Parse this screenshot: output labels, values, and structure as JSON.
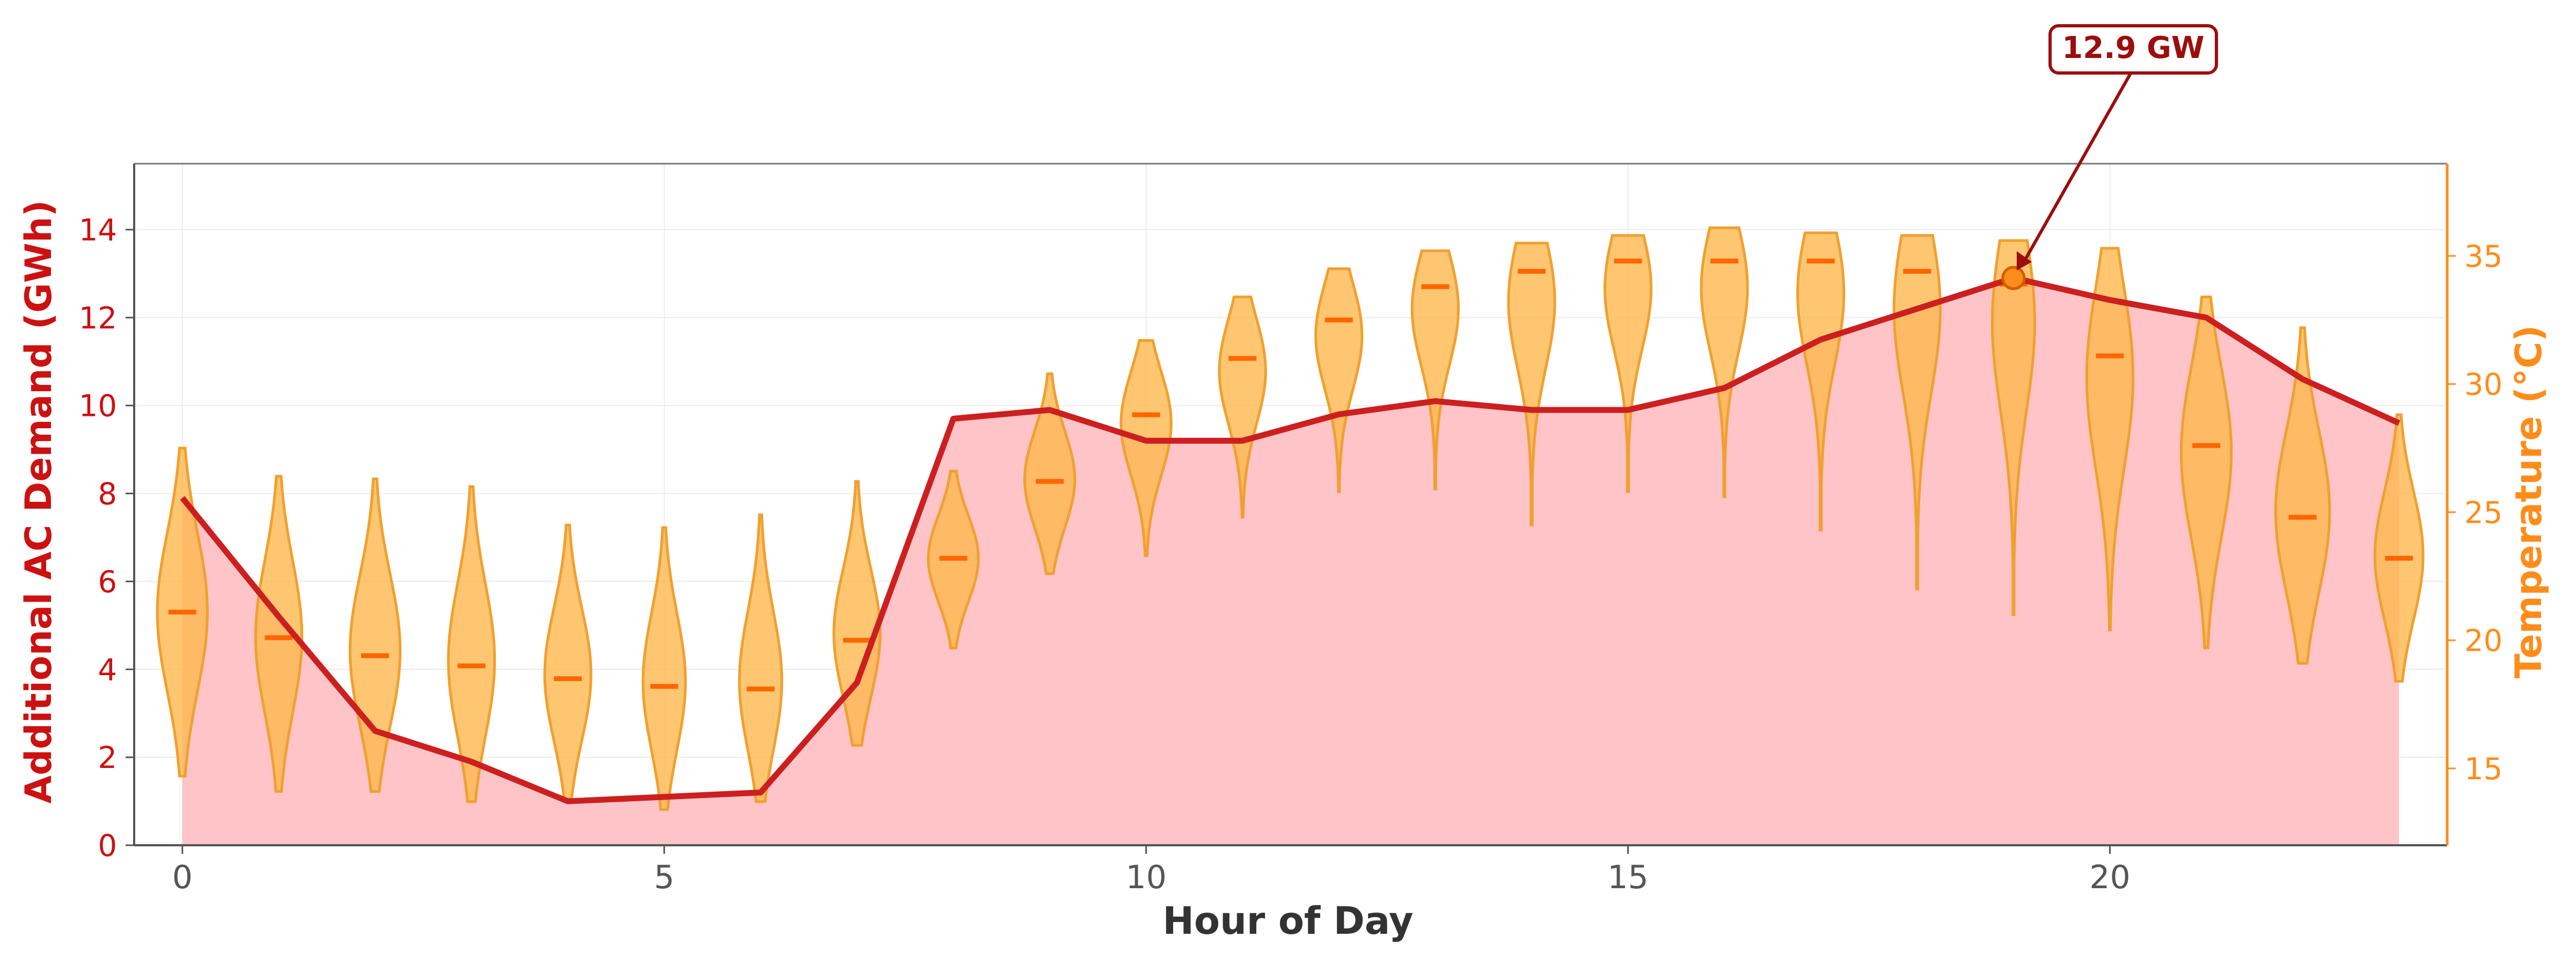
{
  "chart_data": {
    "type": "line",
    "xlabel": "Hour of Day",
    "ylabel": "Additional AC Demand (GWh)",
    "y2label": "Temperature (°C)",
    "xlim": [
      -0.5,
      23.5
    ],
    "ylim": [
      0,
      15.5
    ],
    "y2lim": [
      12,
      38.6
    ],
    "xticks": [
      0,
      5,
      10,
      15,
      20
    ],
    "yticks": [
      0,
      2,
      4,
      6,
      8,
      10,
      12,
      14
    ],
    "y2ticks": [
      15,
      20,
      25,
      30,
      35
    ],
    "grid": true,
    "series": [
      {
        "type": "area-line",
        "color": "#cc1f1f",
        "fill": "#ffc4c8",
        "x": [
          0,
          1,
          2,
          3,
          4,
          5,
          6,
          7,
          8,
          9,
          10,
          11,
          12,
          13,
          14,
          15,
          16,
          17,
          18,
          19,
          20,
          21,
          22,
          23
        ],
        "values": [
          7.9,
          5.2,
          2.6,
          1.9,
          1.0,
          1.1,
          1.2,
          3.7,
          9.7,
          9.9,
          9.2,
          9.2,
          9.8,
          10.1,
          9.9,
          9.9,
          10.4,
          11.5,
          12.2,
          12.9,
          12.4,
          12.0,
          10.6,
          9.6
        ]
      },
      {
        "type": "violin",
        "axis": "right",
        "color": "#ffb84d",
        "edge": "#f0a030",
        "median_color": "#ff6600",
        "x": [
          0,
          1,
          2,
          3,
          4,
          5,
          6,
          7,
          8,
          9,
          10,
          11,
          12,
          13,
          14,
          15,
          16,
          17,
          18,
          19,
          20,
          21,
          22,
          23
        ],
        "min": [
          14.7,
          14.1,
          14.1,
          13.7,
          13.8,
          13.4,
          13.7,
          15.9,
          19.7,
          22.6,
          23.3,
          24.8,
          25.8,
          25.9,
          24.5,
          25.8,
          25.6,
          24.3,
          22.0,
          21.0,
          20.4,
          19.7,
          19.1,
          18.4
        ],
        "max": [
          27.5,
          26.4,
          26.3,
          26.0,
          24.5,
          24.4,
          24.9,
          26.2,
          26.6,
          30.4,
          31.7,
          33.4,
          34.5,
          35.2,
          35.5,
          35.8,
          36.1,
          35.9,
          35.8,
          35.6,
          35.3,
          33.4,
          32.2,
          28.8
        ],
        "median": [
          21.1,
          20.1,
          19.4,
          19.0,
          18.5,
          18.2,
          18.1,
          20.0,
          23.2,
          26.2,
          28.8,
          31.0,
          32.5,
          33.8,
          34.4,
          34.8,
          34.8,
          34.8,
          34.4,
          33.9,
          31.1,
          27.6,
          24.8,
          23.2
        ],
        "width": [
          0.26,
          0.24,
          0.26,
          0.24,
          0.24,
          0.22,
          0.22,
          0.24,
          0.26,
          0.26,
          0.26,
          0.24,
          0.24,
          0.24,
          0.24,
          0.24,
          0.24,
          0.24,
          0.24,
          0.22,
          0.24,
          0.26,
          0.28,
          0.25
        ]
      }
    ],
    "annotations": [
      {
        "text": "12.9 GW",
        "x": 19,
        "y": 12.9,
        "color": "#9b0e0e"
      }
    ]
  }
}
